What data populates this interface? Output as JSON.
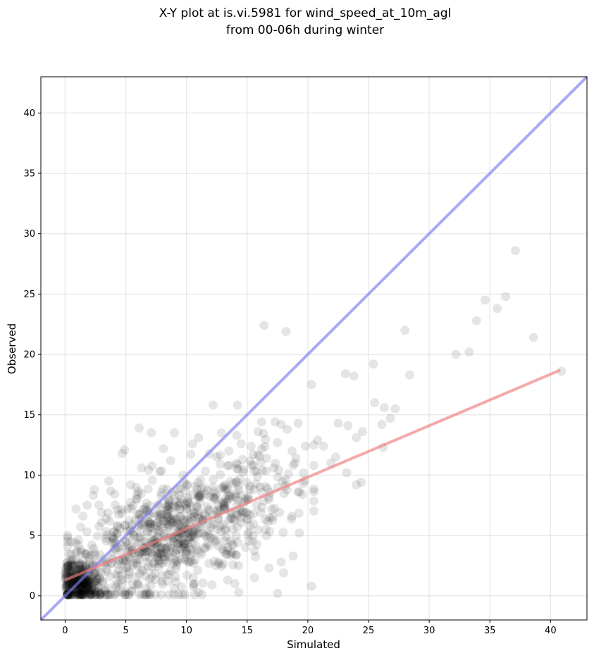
{
  "chart_data": {
    "type": "scatter",
    "title": [
      "X-Y plot at is.vi.5981 for wind_speed_at_10m_agl",
      "from 00-06h during winter"
    ],
    "xlabel": "Simulated",
    "ylabel": "Observed",
    "xlim": [
      -2,
      43
    ],
    "ylim": [
      -2,
      43
    ],
    "xticks": [
      0,
      5,
      10,
      15,
      20,
      25,
      30,
      35,
      40
    ],
    "yticks": [
      0,
      5,
      10,
      15,
      20,
      25,
      30,
      35,
      40
    ],
    "grid": true,
    "colors": {
      "points": "#000000",
      "one_to_one_line": "#7b7bef",
      "regression_line": "#f07b7b"
    },
    "lines": {
      "one_to_one": {
        "x": [
          -2,
          43
        ],
        "y": [
          -2,
          43
        ]
      },
      "regression": {
        "x": [
          0,
          40.8
        ],
        "y": [
          1.3,
          18.7
        ]
      }
    },
    "point_alpha": 0.1,
    "series": [
      {
        "values": [
          [
            0.9,
            7.2
          ],
          [
            16.4,
            22.4
          ],
          [
            18.2,
            21.9
          ],
          [
            14.2,
            15.8
          ],
          [
            12.2,
            15.8
          ],
          [
            6.1,
            13.9
          ],
          [
            9.0,
            13.5
          ],
          [
            11.0,
            13.1
          ],
          [
            7.1,
            13.5
          ],
          [
            4.9,
            12.1
          ],
          [
            8.1,
            12.2
          ],
          [
            15.9,
            13.6
          ],
          [
            16.2,
            14.4
          ],
          [
            17.3,
            14.4
          ],
          [
            17.8,
            14.2
          ],
          [
            18.3,
            13.8
          ],
          [
            19.2,
            14.3
          ],
          [
            17.5,
            12.7
          ],
          [
            15.5,
            11.7
          ],
          [
            18.7,
            12.0
          ],
          [
            19.8,
            12.4
          ],
          [
            20.3,
            17.5
          ],
          [
            20.8,
            12.9
          ],
          [
            21.3,
            12.4
          ],
          [
            21.9,
            11.0
          ],
          [
            22.5,
            14.3
          ],
          [
            23.1,
            18.4
          ],
          [
            23.8,
            18.2
          ],
          [
            23.3,
            14.1
          ],
          [
            24.0,
            13.1
          ],
          [
            24.5,
            13.6
          ],
          [
            25.4,
            19.2
          ],
          [
            25.5,
            16.0
          ],
          [
            26.1,
            14.2
          ],
          [
            26.3,
            15.6
          ],
          [
            27.2,
            15.5
          ],
          [
            26.8,
            14.7
          ],
          [
            26.2,
            12.3
          ],
          [
            24.0,
            9.2
          ],
          [
            24.4,
            9.4
          ],
          [
            23.2,
            10.2
          ],
          [
            22.3,
            11.5
          ],
          [
            20.5,
            10.8
          ],
          [
            19.3,
            8.6
          ],
          [
            20.3,
            0.8
          ],
          [
            17.8,
            2.8
          ],
          [
            18.8,
            3.3
          ],
          [
            19.3,
            5.2
          ],
          [
            17.5,
            0.2
          ],
          [
            28.0,
            22.0
          ],
          [
            28.4,
            18.3
          ],
          [
            32.2,
            20.0
          ],
          [
            33.3,
            20.2
          ],
          [
            33.9,
            22.8
          ],
          [
            34.6,
            24.5
          ],
          [
            35.6,
            23.8
          ],
          [
            36.3,
            24.8
          ],
          [
            37.1,
            28.6
          ],
          [
            38.6,
            21.4
          ],
          [
            40.9,
            18.6
          ],
          [
            4.7,
            11.8
          ],
          [
            7.8,
            10.3
          ],
          [
            8.7,
            11.2
          ],
          [
            10.5,
            12.6
          ],
          [
            12.5,
            11.5
          ],
          [
            13.5,
            12.0
          ],
          [
            14.5,
            12.6
          ],
          [
            15.5,
            10.8
          ],
          [
            16.6,
            11.4
          ],
          [
            17.2,
            10.6
          ],
          [
            18.4,
            10.1
          ],
          [
            19.6,
            9.3
          ],
          [
            2.8,
            0.3
          ],
          [
            3.5,
            0.1
          ],
          [
            5.5,
            0.4
          ],
          [
            7.0,
            0.2
          ],
          [
            9.0,
            0.6
          ],
          [
            11.0,
            0.3
          ],
          [
            12.1,
            0.9
          ],
          [
            13.4,
            1.3
          ],
          [
            14.3,
            0.3
          ],
          [
            15.6,
            1.5
          ],
          [
            16.8,
            2.3
          ],
          [
            18.0,
            1.9
          ],
          [
            2.4,
            8.8
          ],
          [
            3.6,
            9.5
          ],
          [
            5.4,
            9.2
          ],
          [
            6.3,
            10.6
          ],
          [
            3.0,
            6.9
          ],
          [
            1.8,
            5.3
          ],
          [
            2.2,
            4.2
          ]
        ]
      }
    ]
  }
}
